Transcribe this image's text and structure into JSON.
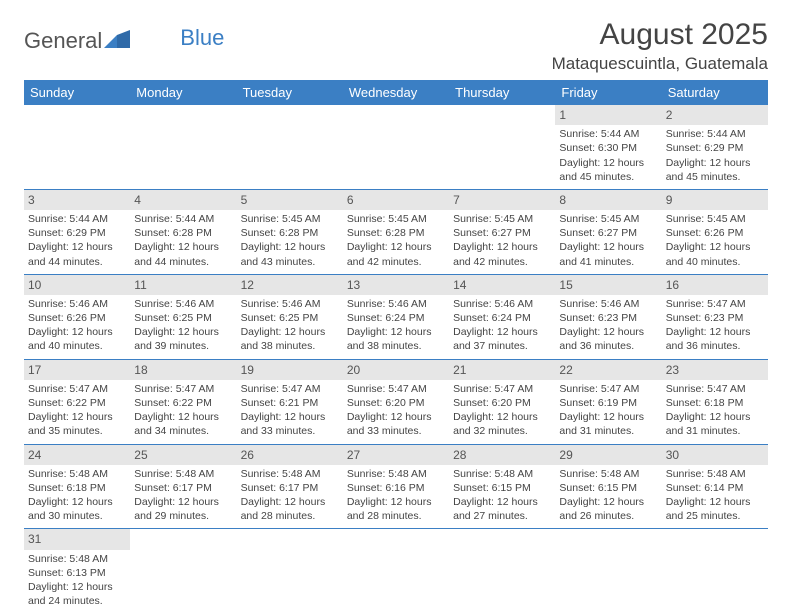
{
  "logo": {
    "word1": "General",
    "word2": "Blue"
  },
  "title": "August 2025",
  "location": "Mataquescuintla, Guatemala",
  "colors": {
    "header_bg": "#3b7fc4",
    "header_text": "#ffffff",
    "daynum_bg": "#e6e6e6",
    "row_border": "#3b7fc4",
    "body_text": "#444444"
  },
  "weekdays": [
    "Sunday",
    "Monday",
    "Tuesday",
    "Wednesday",
    "Thursday",
    "Friday",
    "Saturday"
  ],
  "weeks": [
    [
      null,
      null,
      null,
      null,
      null,
      {
        "n": "1",
        "sr": "Sunrise: 5:44 AM",
        "ss": "Sunset: 6:30 PM",
        "d1": "Daylight: 12 hours",
        "d2": "and 45 minutes."
      },
      {
        "n": "2",
        "sr": "Sunrise: 5:44 AM",
        "ss": "Sunset: 6:29 PM",
        "d1": "Daylight: 12 hours",
        "d2": "and 45 minutes."
      }
    ],
    [
      {
        "n": "3",
        "sr": "Sunrise: 5:44 AM",
        "ss": "Sunset: 6:29 PM",
        "d1": "Daylight: 12 hours",
        "d2": "and 44 minutes."
      },
      {
        "n": "4",
        "sr": "Sunrise: 5:44 AM",
        "ss": "Sunset: 6:28 PM",
        "d1": "Daylight: 12 hours",
        "d2": "and 44 minutes."
      },
      {
        "n": "5",
        "sr": "Sunrise: 5:45 AM",
        "ss": "Sunset: 6:28 PM",
        "d1": "Daylight: 12 hours",
        "d2": "and 43 minutes."
      },
      {
        "n": "6",
        "sr": "Sunrise: 5:45 AM",
        "ss": "Sunset: 6:28 PM",
        "d1": "Daylight: 12 hours",
        "d2": "and 42 minutes."
      },
      {
        "n": "7",
        "sr": "Sunrise: 5:45 AM",
        "ss": "Sunset: 6:27 PM",
        "d1": "Daylight: 12 hours",
        "d2": "and 42 minutes."
      },
      {
        "n": "8",
        "sr": "Sunrise: 5:45 AM",
        "ss": "Sunset: 6:27 PM",
        "d1": "Daylight: 12 hours",
        "d2": "and 41 minutes."
      },
      {
        "n": "9",
        "sr": "Sunrise: 5:45 AM",
        "ss": "Sunset: 6:26 PM",
        "d1": "Daylight: 12 hours",
        "d2": "and 40 minutes."
      }
    ],
    [
      {
        "n": "10",
        "sr": "Sunrise: 5:46 AM",
        "ss": "Sunset: 6:26 PM",
        "d1": "Daylight: 12 hours",
        "d2": "and 40 minutes."
      },
      {
        "n": "11",
        "sr": "Sunrise: 5:46 AM",
        "ss": "Sunset: 6:25 PM",
        "d1": "Daylight: 12 hours",
        "d2": "and 39 minutes."
      },
      {
        "n": "12",
        "sr": "Sunrise: 5:46 AM",
        "ss": "Sunset: 6:25 PM",
        "d1": "Daylight: 12 hours",
        "d2": "and 38 minutes."
      },
      {
        "n": "13",
        "sr": "Sunrise: 5:46 AM",
        "ss": "Sunset: 6:24 PM",
        "d1": "Daylight: 12 hours",
        "d2": "and 38 minutes."
      },
      {
        "n": "14",
        "sr": "Sunrise: 5:46 AM",
        "ss": "Sunset: 6:24 PM",
        "d1": "Daylight: 12 hours",
        "d2": "and 37 minutes."
      },
      {
        "n": "15",
        "sr": "Sunrise: 5:46 AM",
        "ss": "Sunset: 6:23 PM",
        "d1": "Daylight: 12 hours",
        "d2": "and 36 minutes."
      },
      {
        "n": "16",
        "sr": "Sunrise: 5:47 AM",
        "ss": "Sunset: 6:23 PM",
        "d1": "Daylight: 12 hours",
        "d2": "and 36 minutes."
      }
    ],
    [
      {
        "n": "17",
        "sr": "Sunrise: 5:47 AM",
        "ss": "Sunset: 6:22 PM",
        "d1": "Daylight: 12 hours",
        "d2": "and 35 minutes."
      },
      {
        "n": "18",
        "sr": "Sunrise: 5:47 AM",
        "ss": "Sunset: 6:22 PM",
        "d1": "Daylight: 12 hours",
        "d2": "and 34 minutes."
      },
      {
        "n": "19",
        "sr": "Sunrise: 5:47 AM",
        "ss": "Sunset: 6:21 PM",
        "d1": "Daylight: 12 hours",
        "d2": "and 33 minutes."
      },
      {
        "n": "20",
        "sr": "Sunrise: 5:47 AM",
        "ss": "Sunset: 6:20 PM",
        "d1": "Daylight: 12 hours",
        "d2": "and 33 minutes."
      },
      {
        "n": "21",
        "sr": "Sunrise: 5:47 AM",
        "ss": "Sunset: 6:20 PM",
        "d1": "Daylight: 12 hours",
        "d2": "and 32 minutes."
      },
      {
        "n": "22",
        "sr": "Sunrise: 5:47 AM",
        "ss": "Sunset: 6:19 PM",
        "d1": "Daylight: 12 hours",
        "d2": "and 31 minutes."
      },
      {
        "n": "23",
        "sr": "Sunrise: 5:47 AM",
        "ss": "Sunset: 6:18 PM",
        "d1": "Daylight: 12 hours",
        "d2": "and 31 minutes."
      }
    ],
    [
      {
        "n": "24",
        "sr": "Sunrise: 5:48 AM",
        "ss": "Sunset: 6:18 PM",
        "d1": "Daylight: 12 hours",
        "d2": "and 30 minutes."
      },
      {
        "n": "25",
        "sr": "Sunrise: 5:48 AM",
        "ss": "Sunset: 6:17 PM",
        "d1": "Daylight: 12 hours",
        "d2": "and 29 minutes."
      },
      {
        "n": "26",
        "sr": "Sunrise: 5:48 AM",
        "ss": "Sunset: 6:17 PM",
        "d1": "Daylight: 12 hours",
        "d2": "and 28 minutes."
      },
      {
        "n": "27",
        "sr": "Sunrise: 5:48 AM",
        "ss": "Sunset: 6:16 PM",
        "d1": "Daylight: 12 hours",
        "d2": "and 28 minutes."
      },
      {
        "n": "28",
        "sr": "Sunrise: 5:48 AM",
        "ss": "Sunset: 6:15 PM",
        "d1": "Daylight: 12 hours",
        "d2": "and 27 minutes."
      },
      {
        "n": "29",
        "sr": "Sunrise: 5:48 AM",
        "ss": "Sunset: 6:15 PM",
        "d1": "Daylight: 12 hours",
        "d2": "and 26 minutes."
      },
      {
        "n": "30",
        "sr": "Sunrise: 5:48 AM",
        "ss": "Sunset: 6:14 PM",
        "d1": "Daylight: 12 hours",
        "d2": "and 25 minutes."
      }
    ],
    [
      {
        "n": "31",
        "sr": "Sunrise: 5:48 AM",
        "ss": "Sunset: 6:13 PM",
        "d1": "Daylight: 12 hours",
        "d2": "and 24 minutes."
      },
      null,
      null,
      null,
      null,
      null,
      null
    ]
  ]
}
